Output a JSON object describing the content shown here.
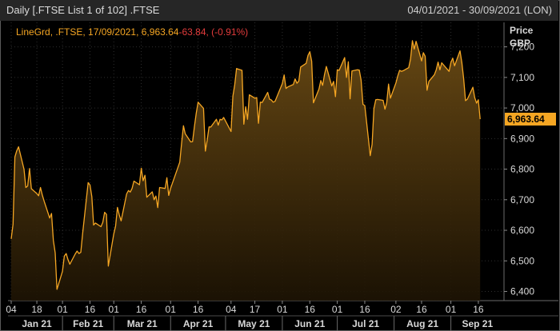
{
  "header": {
    "title": "Daily [.FTSE List 1 of 102] .FTSE",
    "date_range": "04/01/2021 - 30/09/2021 (LON)"
  },
  "legend": {
    "label": "LineGrd, .FTSE, 17/09/2021, 6,963.64",
    "change": "-63.84, (-0.91%)"
  },
  "axis": {
    "price_label": "Price",
    "currency_label": "GBP",
    "last_value_label": "6,963.64"
  },
  "colors": {
    "line": "#f5a623",
    "fill_top": "#6a4a14",
    "change": "#e23b3b",
    "last_badge": "#f5a623"
  },
  "chart_data": {
    "type": "area",
    "series_name": "LineGrd, .FTSE",
    "ylim": [
      6370,
      7280
    ],
    "xlim": [
      "2021-01-04",
      "2021-09-30"
    ],
    "y_ticks": [
      6400,
      6500,
      6600,
      6700,
      6800,
      6900,
      7000,
      7100,
      7200
    ],
    "y_tick_labels": [
      "6,400",
      "6,500",
      "6,600",
      "6,700",
      "6,800",
      "6,900",
      "7,000",
      "7,100",
      "7,200"
    ],
    "day_ticks": [
      {
        "date": "2021-01-04",
        "label": "04"
      },
      {
        "date": "2021-01-18",
        "label": "18"
      },
      {
        "date": "2021-02-01",
        "label": "01"
      },
      {
        "date": "2021-02-16",
        "label": "16"
      },
      {
        "date": "2021-03-01",
        "label": "01"
      },
      {
        "date": "2021-03-16",
        "label": "16"
      },
      {
        "date": "2021-04-01",
        "label": "01"
      },
      {
        "date": "2021-04-16",
        "label": "16"
      },
      {
        "date": "2021-05-04",
        "label": "04"
      },
      {
        "date": "2021-05-17",
        "label": "17"
      },
      {
        "date": "2021-06-01",
        "label": "01"
      },
      {
        "date": "2021-06-16",
        "label": "16"
      },
      {
        "date": "2021-07-01",
        "label": "01"
      },
      {
        "date": "2021-07-16",
        "label": "16"
      },
      {
        "date": "2021-08-02",
        "label": "02"
      },
      {
        "date": "2021-08-16",
        "label": "16"
      },
      {
        "date": "2021-09-01",
        "label": "01"
      },
      {
        "date": "2021-09-16",
        "label": "16"
      }
    ],
    "months": [
      {
        "label": "Jan 21",
        "start": "2021-01-04",
        "end": "2021-02-01"
      },
      {
        "label": "Feb 21",
        "start": "2021-02-01",
        "end": "2021-03-01"
      },
      {
        "label": "Mar 21",
        "start": "2021-03-01",
        "end": "2021-04-01"
      },
      {
        "label": "Apr 21",
        "start": "2021-04-01",
        "end": "2021-05-01"
      },
      {
        "label": "May 21",
        "start": "2021-05-01",
        "end": "2021-06-01"
      },
      {
        "label": "Jun 21",
        "start": "2021-06-01",
        "end": "2021-07-01"
      },
      {
        "label": "Jul 21",
        "start": "2021-07-01",
        "end": "2021-08-01"
      },
      {
        "label": "Aug 21",
        "start": "2021-08-01",
        "end": "2021-09-01"
      },
      {
        "label": "Sep 21",
        "start": "2021-09-01",
        "end": "2021-09-30"
      }
    ],
    "points": [
      [
        "2021-01-04",
        6572
      ],
      [
        "2021-01-05",
        6620
      ],
      [
        "2021-01-06",
        6840
      ],
      [
        "2021-01-07",
        6860
      ],
      [
        "2021-01-08",
        6873
      ],
      [
        "2021-01-11",
        6800
      ],
      [
        "2021-01-12",
        6740
      ],
      [
        "2021-01-13",
        6745
      ],
      [
        "2021-01-14",
        6802
      ],
      [
        "2021-01-15",
        6736
      ],
      [
        "2021-01-18",
        6720
      ],
      [
        "2021-01-19",
        6713
      ],
      [
        "2021-01-20",
        6740
      ],
      [
        "2021-01-21",
        6715
      ],
      [
        "2021-01-22",
        6695
      ],
      [
        "2021-01-25",
        6640
      ],
      [
        "2021-01-26",
        6655
      ],
      [
        "2021-01-27",
        6567
      ],
      [
        "2021-01-28",
        6526
      ],
      [
        "2021-01-29",
        6407
      ],
      [
        "2021-02-01",
        6466
      ],
      [
        "2021-02-02",
        6516
      ],
      [
        "2021-02-03",
        6524
      ],
      [
        "2021-02-04",
        6504
      ],
      [
        "2021-02-05",
        6489
      ],
      [
        "2021-02-08",
        6523
      ],
      [
        "2021-02-09",
        6532
      ],
      [
        "2021-02-10",
        6524
      ],
      [
        "2021-02-11",
        6528
      ],
      [
        "2021-02-12",
        6590
      ],
      [
        "2021-02-15",
        6756
      ],
      [
        "2021-02-16",
        6748
      ],
      [
        "2021-02-17",
        6710
      ],
      [
        "2021-02-18",
        6617
      ],
      [
        "2021-02-19",
        6624
      ],
      [
        "2021-02-22",
        6612
      ],
      [
        "2021-02-23",
        6626
      ],
      [
        "2021-02-24",
        6659
      ],
      [
        "2021-02-25",
        6652
      ],
      [
        "2021-02-26",
        6483
      ],
      [
        "2021-03-01",
        6588
      ],
      [
        "2021-03-02",
        6614
      ],
      [
        "2021-03-03",
        6675
      ],
      [
        "2021-03-04",
        6650
      ],
      [
        "2021-03-05",
        6631
      ],
      [
        "2021-03-08",
        6719
      ],
      [
        "2021-03-09",
        6730
      ],
      [
        "2021-03-10",
        6725
      ],
      [
        "2021-03-11",
        6737
      ],
      [
        "2021-03-12",
        6761
      ],
      [
        "2021-03-15",
        6749
      ],
      [
        "2021-03-16",
        6803
      ],
      [
        "2021-03-17",
        6762
      ],
      [
        "2021-03-18",
        6780
      ],
      [
        "2021-03-19",
        6708
      ],
      [
        "2021-03-22",
        6726
      ],
      [
        "2021-03-23",
        6700
      ],
      [
        "2021-03-24",
        6712
      ],
      [
        "2021-03-25",
        6674
      ],
      [
        "2021-03-26",
        6740
      ],
      [
        "2021-03-29",
        6737
      ],
      [
        "2021-03-30",
        6772
      ],
      [
        "2021-03-31",
        6714
      ],
      [
        "2021-04-01",
        6737
      ],
      [
        "2021-04-06",
        6823
      ],
      [
        "2021-04-07",
        6885
      ],
      [
        "2021-04-08",
        6942
      ],
      [
        "2021-04-09",
        6916
      ],
      [
        "2021-04-12",
        6889
      ],
      [
        "2021-04-13",
        6890
      ],
      [
        "2021-04-14",
        6939
      ],
      [
        "2021-04-15",
        6983
      ],
      [
        "2021-04-16",
        7019
      ],
      [
        "2021-04-19",
        6999
      ],
      [
        "2021-04-20",
        6859
      ],
      [
        "2021-04-21",
        6895
      ],
      [
        "2021-04-22",
        6938
      ],
      [
        "2021-04-23",
        6938
      ],
      [
        "2021-04-26",
        6963
      ],
      [
        "2021-04-27",
        6944
      ],
      [
        "2021-04-28",
        6963
      ],
      [
        "2021-04-29",
        6961
      ],
      [
        "2021-04-30",
        6969
      ],
      [
        "2021-05-04",
        6923
      ],
      [
        "2021-05-05",
        7039
      ],
      [
        "2021-05-06",
        7076
      ],
      [
        "2021-05-07",
        7129
      ],
      [
        "2021-05-10",
        7123
      ],
      [
        "2021-05-11",
        6947
      ],
      [
        "2021-05-12",
        7004
      ],
      [
        "2021-05-13",
        6963
      ],
      [
        "2021-05-14",
        7043
      ],
      [
        "2021-05-17",
        7032
      ],
      [
        "2021-05-18",
        7034
      ],
      [
        "2021-05-19",
        6950
      ],
      [
        "2021-05-20",
        7019
      ],
      [
        "2021-05-21",
        7018
      ],
      [
        "2021-05-24",
        7051
      ],
      [
        "2021-05-25",
        7029
      ],
      [
        "2021-05-26",
        7026
      ],
      [
        "2021-05-27",
        7019
      ],
      [
        "2021-05-28",
        7022
      ],
      [
        "2021-06-01",
        7080
      ],
      [
        "2021-06-02",
        7108
      ],
      [
        "2021-06-03",
        7064
      ],
      [
        "2021-06-04",
        7069
      ],
      [
        "2021-06-07",
        7077
      ],
      [
        "2021-06-08",
        7095
      ],
      [
        "2021-06-09",
        7081
      ],
      [
        "2021-06-10",
        7088
      ],
      [
        "2021-06-11",
        7134
      ],
      [
        "2021-06-14",
        7146
      ],
      [
        "2021-06-15",
        7172
      ],
      [
        "2021-06-16",
        7184
      ],
      [
        "2021-06-17",
        7153
      ],
      [
        "2021-06-18",
        7017
      ],
      [
        "2021-06-21",
        7062
      ],
      [
        "2021-06-22",
        7090
      ],
      [
        "2021-06-23",
        7074
      ],
      [
        "2021-06-24",
        7109
      ],
      [
        "2021-06-25",
        7136
      ],
      [
        "2021-06-28",
        7072
      ],
      [
        "2021-06-29",
        7087
      ],
      [
        "2021-06-30",
        7037
      ],
      [
        "2021-07-01",
        7125
      ],
      [
        "2021-07-02",
        7123
      ],
      [
        "2021-07-05",
        7165
      ],
      [
        "2021-07-06",
        7100
      ],
      [
        "2021-07-07",
        7151
      ],
      [
        "2021-07-08",
        7030
      ],
      [
        "2021-07-09",
        7121
      ],
      [
        "2021-07-12",
        7125
      ],
      [
        "2021-07-13",
        7124
      ],
      [
        "2021-07-14",
        7091
      ],
      [
        "2021-07-15",
        7012
      ],
      [
        "2021-07-16",
        7008
      ],
      [
        "2021-07-19",
        6844
      ],
      [
        "2021-07-20",
        6881
      ],
      [
        "2021-07-21",
        6998
      ],
      [
        "2021-07-22",
        7027
      ],
      [
        "2021-07-23",
        7028
      ],
      [
        "2021-07-26",
        7025
      ],
      [
        "2021-07-27",
        6996
      ],
      [
        "2021-07-28",
        7017
      ],
      [
        "2021-07-29",
        7078
      ],
      [
        "2021-07-30",
        7032
      ],
      [
        "2021-08-02",
        7082
      ],
      [
        "2021-08-03",
        7105
      ],
      [
        "2021-08-04",
        7123
      ],
      [
        "2021-08-05",
        7120
      ],
      [
        "2021-08-06",
        7122
      ],
      [
        "2021-08-09",
        7132
      ],
      [
        "2021-08-10",
        7161
      ],
      [
        "2021-08-11",
        7220
      ],
      [
        "2021-08-12",
        7193
      ],
      [
        "2021-08-13",
        7218
      ],
      [
        "2021-08-16",
        7154
      ],
      [
        "2021-08-17",
        7181
      ],
      [
        "2021-08-18",
        7169
      ],
      [
        "2021-08-19",
        7058
      ],
      [
        "2021-08-20",
        7087
      ],
      [
        "2021-08-23",
        7109
      ],
      [
        "2021-08-24",
        7125
      ],
      [
        "2021-08-25",
        7150
      ],
      [
        "2021-08-26",
        7125
      ],
      [
        "2021-08-27",
        7148
      ],
      [
        "2021-08-31",
        7120
      ],
      [
        "2021-09-01",
        7149
      ],
      [
        "2021-09-02",
        7163
      ],
      [
        "2021-09-03",
        7138
      ],
      [
        "2021-09-06",
        7187
      ],
      [
        "2021-09-07",
        7149
      ],
      [
        "2021-09-08",
        7095
      ],
      [
        "2021-09-09",
        7024
      ],
      [
        "2021-09-10",
        7029
      ],
      [
        "2021-09-13",
        7068
      ],
      [
        "2021-09-14",
        7034
      ],
      [
        "2021-09-15",
        7016
      ],
      [
        "2021-09-16",
        7027
      ],
      [
        "2021-09-17",
        6963.64
      ]
    ]
  }
}
